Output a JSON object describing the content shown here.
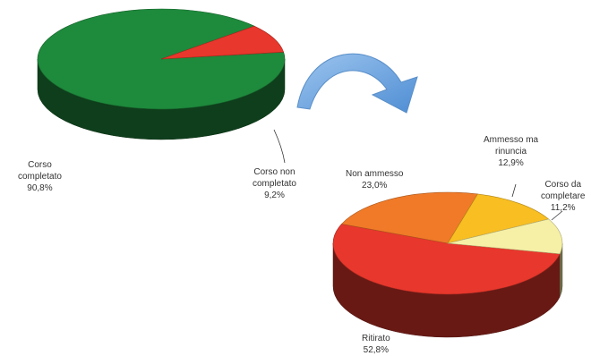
{
  "chart_data": [
    {
      "type": "pie",
      "title": "",
      "slices": [
        {
          "label_lines": [
            "Corso",
            "completato"
          ],
          "value": 90.8,
          "value_label": "90,8%",
          "color": "#1e8a3c"
        },
        {
          "label_lines": [
            "Corso non",
            "completato"
          ],
          "value": 9.2,
          "value_label": "9,2%",
          "color": "#e8372c"
        }
      ],
      "style": "3d"
    },
    {
      "type": "pie",
      "title": "",
      "slices": [
        {
          "label_lines": [
            "Ritirato"
          ],
          "value": 52.8,
          "value_label": "52,8%",
          "color": "#e8372c"
        },
        {
          "label_lines": [
            "Non ammesso"
          ],
          "value": 23.0,
          "value_label": "23,0%",
          "color": "#f07a28"
        },
        {
          "label_lines": [
            "Ammesso ma",
            "rinuncia"
          ],
          "value": 12.9,
          "value_label": "12,9%",
          "color": "#f8be22"
        },
        {
          "label_lines": [
            "Corso da",
            "completare"
          ],
          "value": 11.2,
          "value_label": "11,2%",
          "color": "#f6f0a6"
        }
      ],
      "style": "3d"
    }
  ],
  "arrow": {
    "icon": "curved-arrow-icon",
    "color": "#6ea6dd"
  }
}
